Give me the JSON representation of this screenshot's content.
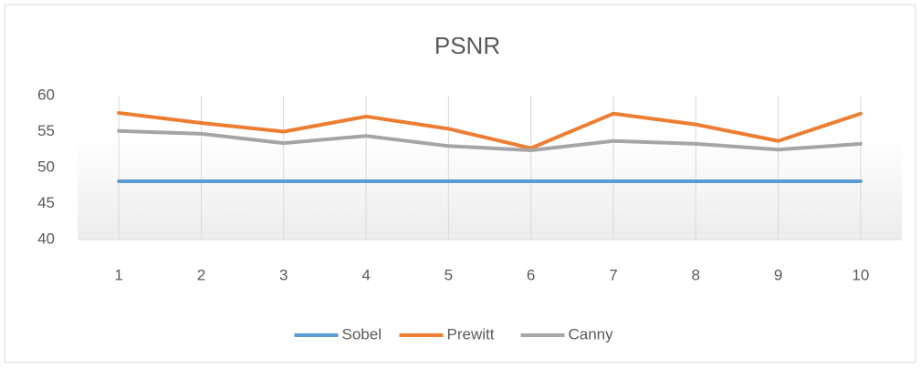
{
  "chart_data": {
    "type": "line",
    "title": "PSNR",
    "categories": [
      "1",
      "2",
      "3",
      "4",
      "5",
      "6",
      "7",
      "8",
      "9",
      "10"
    ],
    "series": [
      {
        "name": "Sobel",
        "color": "#5b9bd5",
        "values": [
          48.1,
          48.1,
          48.1,
          48.1,
          48.1,
          48.1,
          48.1,
          48.1,
          48.1,
          48.1
        ]
      },
      {
        "name": "Prewitt",
        "color": "#ed7d31",
        "values": [
          57.6,
          56.2,
          55.0,
          57.1,
          55.4,
          52.7,
          57.5,
          56.0,
          53.7,
          57.5
        ]
      },
      {
        "name": "Canny",
        "color": "#a5a5a5",
        "values": [
          55.1,
          54.7,
          53.4,
          54.4,
          53.0,
          52.4,
          53.7,
          53.3,
          52.5,
          53.3
        ]
      }
    ],
    "ylim": [
      40,
      60
    ],
    "yticks": [
      40,
      45,
      50,
      55,
      60
    ],
    "grid": true,
    "legend": "bottom"
  }
}
